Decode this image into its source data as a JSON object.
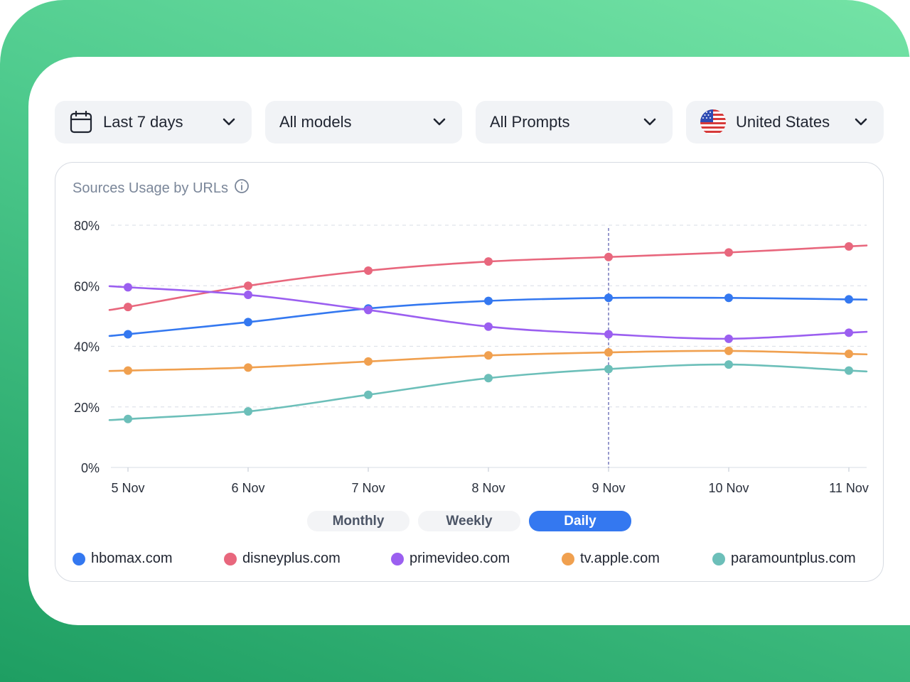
{
  "filters": {
    "date_range": "Last 7 days",
    "models": "All models",
    "prompts": "All Prompts",
    "country": "United States"
  },
  "panel": {
    "title": "Sources Usage by URLs"
  },
  "toggles": {
    "monthly": "Monthly",
    "weekly": "Weekly",
    "daily": "Daily",
    "active": "daily"
  },
  "chart_data": {
    "type": "line",
    "title": "Sources Usage by URLs",
    "categories": [
      "5 Nov",
      "6 Nov",
      "7 Nov",
      "8 Nov",
      "9 Nov",
      "10 Nov",
      "11 Nov"
    ],
    "y_ticks": [
      "80%",
      "60%",
      "40%",
      "20%",
      "0%"
    ],
    "y_tick_values": [
      80,
      60,
      40,
      20,
      0
    ],
    "ylim": [
      0,
      80
    ],
    "grid": true,
    "highlight_category": "9 Nov",
    "legend_position": "bottom",
    "series": [
      {
        "name": "hbomax.com",
        "color": "#3478f0",
        "values": [
          44,
          48,
          52.5,
          55,
          56,
          56,
          55.5
        ]
      },
      {
        "name": "disneyplus.com",
        "color": "#e8677d",
        "values": [
          53,
          60,
          65,
          68,
          69.5,
          71,
          73
        ]
      },
      {
        "name": "primevideo.com",
        "color": "#9b5ff0",
        "values": [
          59.5,
          57,
          52,
          46.5,
          44,
          42.5,
          44.5
        ]
      },
      {
        "name": "tv.apple.com",
        "color": "#f0a04f",
        "values": [
          32,
          33,
          35,
          37,
          38,
          38.5,
          37.5
        ]
      },
      {
        "name": "paramountplus.com",
        "color": "#6cbfb9",
        "values": [
          16,
          18.5,
          24,
          29.5,
          32.5,
          34,
          32
        ]
      }
    ]
  }
}
